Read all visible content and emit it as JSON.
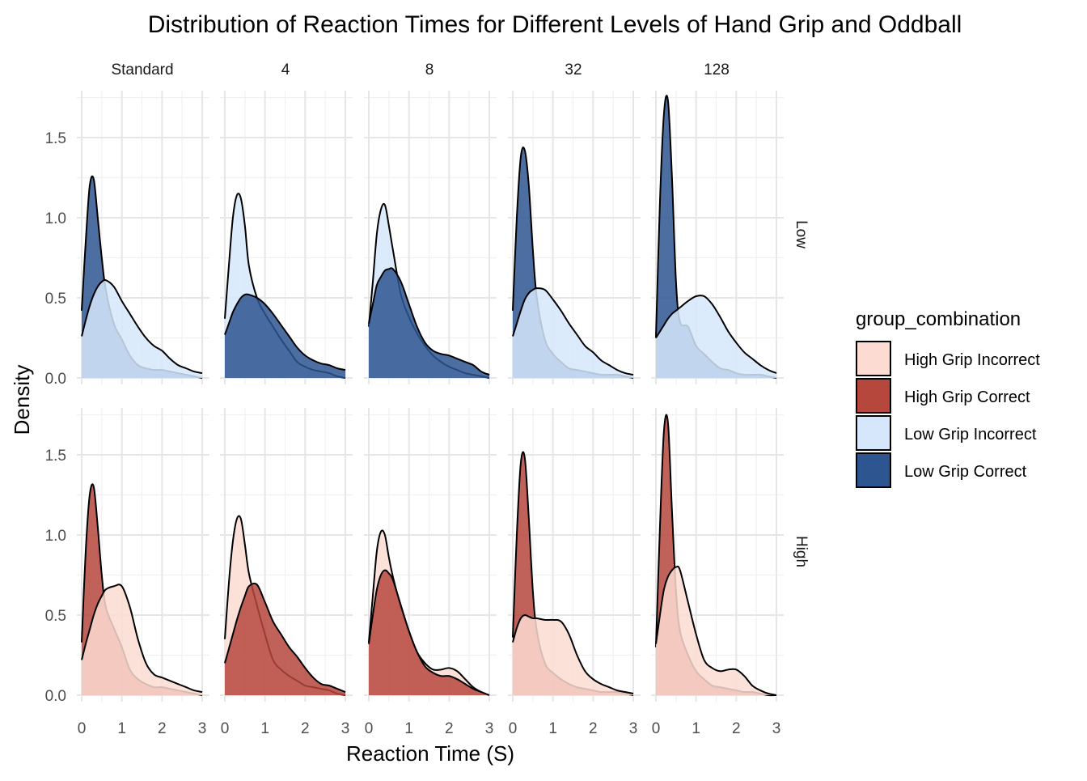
{
  "chart_data": {
    "type": "area",
    "title": "Distribution of Reaction Times for Different Levels of Hand Grip and Oddball",
    "xlabel": "Reaction Time (S)",
    "ylabel": "Density",
    "xlim": [
      0,
      3
    ],
    "ylim": [
      0,
      1.8
    ],
    "x_ticks": [
      0,
      1,
      2,
      3
    ],
    "y_ticks": [
      0.0,
      0.5,
      1.0,
      1.5
    ],
    "x_tick_labels": [
      "0",
      "1",
      "2",
      "3"
    ],
    "y_tick_labels": [
      "0.0",
      "0.5",
      "1.0",
      "1.5"
    ],
    "columns": [
      "Standard",
      "4",
      "8",
      "32",
      "128"
    ],
    "rows": [
      "Low",
      "High"
    ],
    "grid": true,
    "legend": {
      "title": "group_combination",
      "position": "right",
      "entries": [
        {
          "label": "High Grip Incorrect",
          "color": "#fcdcd2"
        },
        {
          "label": "High Grip Correct",
          "color": "#b6473d"
        },
        {
          "label": "Low Grip Incorrect",
          "color": "#d6e7fc"
        },
        {
          "label": "Low Grip Correct",
          "color": "#2d5590"
        }
      ]
    },
    "x_grid": [
      0,
      0.1,
      0.2,
      0.3,
      0.4,
      0.5,
      0.6,
      0.8,
      1.0,
      1.2,
      1.4,
      1.6,
      1.8,
      2.0,
      2.2,
      2.4,
      2.6,
      2.8,
      3.0
    ],
    "panels": [
      {
        "row": "Low",
        "column": "Standard",
        "series": [
          {
            "name": "Low Grip Correct",
            "values": [
              0.42,
              0.85,
              1.2,
              1.24,
              1.0,
              0.75,
              0.55,
              0.34,
              0.24,
              0.14,
              0.08,
              0.06,
              0.05,
              0.05,
              0.04,
              0.03,
              0.02,
              0.01,
              0.0
            ]
          },
          {
            "name": "Low Grip Incorrect",
            "values": [
              0.26,
              0.36,
              0.45,
              0.52,
              0.57,
              0.6,
              0.61,
              0.57,
              0.48,
              0.4,
              0.32,
              0.25,
              0.2,
              0.17,
              0.12,
              0.08,
              0.06,
              0.04,
              0.03
            ]
          }
        ]
      },
      {
        "row": "Low",
        "column": "4",
        "series": [
          {
            "name": "Low Grip Incorrect",
            "values": [
              0.37,
              0.7,
              1.0,
              1.14,
              1.12,
              0.95,
              0.7,
              0.5,
              0.4,
              0.32,
              0.24,
              0.17,
              0.1,
              0.07,
              0.05,
              0.04,
              0.03,
              0.01,
              0.0
            ]
          },
          {
            "name": "Low Grip Correct",
            "values": [
              0.27,
              0.34,
              0.41,
              0.46,
              0.5,
              0.52,
              0.52,
              0.5,
              0.46,
              0.4,
              0.33,
              0.26,
              0.19,
              0.14,
              0.11,
              0.09,
              0.08,
              0.06,
              0.05
            ]
          }
        ]
      },
      {
        "row": "Low",
        "column": "8",
        "series": [
          {
            "name": "Low Grip Incorrect",
            "values": [
              0.32,
              0.6,
              0.9,
              1.05,
              1.08,
              0.95,
              0.8,
              0.52,
              0.38,
              0.28,
              0.2,
              0.14,
              0.1,
              0.07,
              0.05,
              0.03,
              0.02,
              0.01,
              0.0
            ]
          },
          {
            "name": "Low Grip Correct",
            "values": [
              0.34,
              0.46,
              0.58,
              0.63,
              0.67,
              0.68,
              0.68,
              0.6,
              0.46,
              0.32,
              0.22,
              0.17,
              0.15,
              0.14,
              0.12,
              0.1,
              0.08,
              0.04,
              0.02
            ]
          }
        ]
      },
      {
        "row": "Low",
        "column": "32",
        "series": [
          {
            "name": "Low Grip Correct",
            "values": [
              0.42,
              1.0,
              1.38,
              1.42,
              1.2,
              0.8,
              0.5,
              0.24,
              0.15,
              0.1,
              0.06,
              0.05,
              0.04,
              0.03,
              0.02,
              0.02,
              0.02,
              0.01,
              0.0
            ]
          },
          {
            "name": "Low Grip Incorrect",
            "values": [
              0.26,
              0.34,
              0.42,
              0.49,
              0.53,
              0.55,
              0.56,
              0.55,
              0.49,
              0.42,
              0.34,
              0.27,
              0.2,
              0.16,
              0.11,
              0.08,
              0.05,
              0.03,
              0.02
            ]
          }
        ]
      },
      {
        "row": "Low",
        "column": "128",
        "series": [
          {
            "name": "Low Grip Correct",
            "values": [
              0.25,
              1.1,
              1.65,
              1.73,
              1.25,
              0.6,
              0.35,
              0.32,
              0.2,
              0.15,
              0.1,
              0.06,
              0.05,
              0.03,
              0.02,
              0.02,
              0.02,
              0.01,
              0.0
            ]
          },
          {
            "name": "Low Grip Incorrect",
            "values": [
              0.25,
              0.29,
              0.33,
              0.37,
              0.4,
              0.42,
              0.44,
              0.48,
              0.51,
              0.51,
              0.46,
              0.38,
              0.29,
              0.22,
              0.16,
              0.12,
              0.08,
              0.05,
              0.03
            ]
          }
        ]
      },
      {
        "row": "High",
        "column": "Standard",
        "series": [
          {
            "name": "High Grip Correct",
            "values": [
              0.33,
              0.9,
              1.25,
              1.3,
              1.05,
              0.75,
              0.55,
              0.42,
              0.3,
              0.16,
              0.1,
              0.07,
              0.05,
              0.05,
              0.04,
              0.03,
              0.02,
              0.01,
              0.0
            ]
          },
          {
            "name": "High Grip Incorrect",
            "values": [
              0.22,
              0.32,
              0.41,
              0.5,
              0.57,
              0.62,
              0.66,
              0.68,
              0.68,
              0.55,
              0.35,
              0.2,
              0.13,
              0.11,
              0.09,
              0.07,
              0.05,
              0.03,
              0.02
            ]
          }
        ]
      },
      {
        "row": "High",
        "column": "4",
        "series": [
          {
            "name": "High Grip Incorrect",
            "values": [
              0.35,
              0.7,
              0.96,
              1.1,
              1.1,
              0.94,
              0.76,
              0.56,
              0.38,
              0.22,
              0.16,
              0.12,
              0.09,
              0.06,
              0.05,
              0.04,
              0.03,
              0.01,
              0.0
            ]
          },
          {
            "name": "High Grip Correct",
            "values": [
              0.2,
              0.29,
              0.38,
              0.47,
              0.55,
              0.62,
              0.68,
              0.69,
              0.58,
              0.46,
              0.38,
              0.3,
              0.24,
              0.17,
              0.11,
              0.07,
              0.06,
              0.04,
              0.02
            ]
          }
        ]
      },
      {
        "row": "High",
        "column": "8",
        "series": [
          {
            "name": "High Grip Incorrect",
            "values": [
              0.33,
              0.62,
              0.9,
              1.02,
              1.0,
              0.86,
              0.74,
              0.55,
              0.4,
              0.27,
              0.2,
              0.16,
              0.16,
              0.17,
              0.15,
              0.1,
              0.05,
              0.02,
              0.0
            ]
          },
          {
            "name": "High Grip Correct",
            "values": [
              0.32,
              0.5,
              0.66,
              0.75,
              0.78,
              0.76,
              0.72,
              0.56,
              0.4,
              0.27,
              0.18,
              0.14,
              0.12,
              0.12,
              0.1,
              0.07,
              0.04,
              0.02,
              0.0
            ]
          }
        ]
      },
      {
        "row": "High",
        "column": "32",
        "series": [
          {
            "name": "High Grip Correct",
            "values": [
              0.36,
              1.0,
              1.45,
              1.48,
              1.1,
              0.65,
              0.4,
              0.2,
              0.14,
              0.1,
              0.07,
              0.05,
              0.04,
              0.03,
              0.02,
              0.02,
              0.02,
              0.01,
              0.0
            ]
          },
          {
            "name": "High Grip Incorrect",
            "values": [
              0.33,
              0.42,
              0.48,
              0.5,
              0.49,
              0.48,
              0.48,
              0.47,
              0.47,
              0.46,
              0.38,
              0.25,
              0.15,
              0.1,
              0.07,
              0.05,
              0.03,
              0.02,
              0.01
            ]
          }
        ]
      },
      {
        "row": "High",
        "column": "128",
        "series": [
          {
            "name": "High Grip Correct",
            "values": [
              0.3,
              1.05,
              1.65,
              1.7,
              1.15,
              0.65,
              0.4,
              0.25,
              0.15,
              0.1,
              0.06,
              0.05,
              0.04,
              0.03,
              0.02,
              0.02,
              0.01,
              0.0,
              0.0
            ]
          },
          {
            "name": "High Grip Incorrect",
            "values": [
              0.32,
              0.5,
              0.66,
              0.74,
              0.78,
              0.8,
              0.78,
              0.58,
              0.38,
              0.22,
              0.17,
              0.15,
              0.16,
              0.16,
              0.12,
              0.06,
              0.03,
              0.01,
              0.0
            ]
          }
        ]
      }
    ]
  }
}
